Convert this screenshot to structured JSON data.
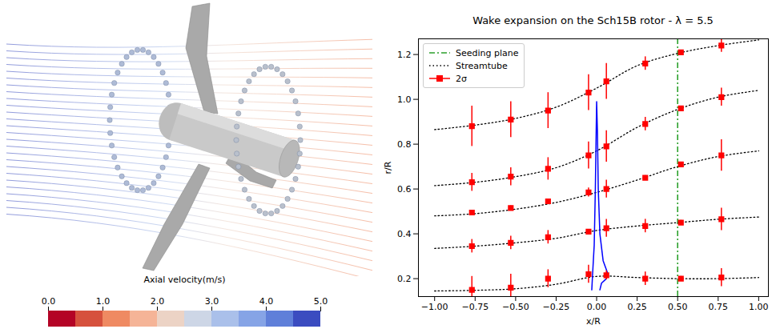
{
  "render": {
    "colorbar": {
      "label": "Axial velocity(m/s)",
      "range": [
        0,
        5
      ],
      "ticks": [
        {
          "value": 0,
          "label": "0.0"
        },
        {
          "value": 1,
          "label": "1.0"
        },
        {
          "value": 2,
          "label": "2.0"
        },
        {
          "value": 3,
          "label": "3.0"
        },
        {
          "value": 4,
          "label": "4.0"
        },
        {
          "value": 5,
          "label": "5.0"
        }
      ],
      "colors": [
        "#b40426",
        "#d6513d",
        "#ef8a62",
        "#f5b497",
        "#ecd3c5",
        "#cdd6e6",
        "#aac0ea",
        "#86a4e6",
        "#5f7fd9",
        "#3b4cc0"
      ]
    }
  },
  "chart_data": {
    "type": "line",
    "title": "Wake expansion on the Sch15B rotor - λ = 5.5",
    "x_label": "x/R",
    "y_label": "r/R",
    "xlim": [
      -1.1,
      1.06
    ],
    "ylim": [
      0.12,
      1.27
    ],
    "xticks": [
      {
        "value": -1,
        "label": "−1.00"
      },
      {
        "value": -0.75,
        "label": "−0.75"
      },
      {
        "value": -0.5,
        "label": "−0.50"
      },
      {
        "value": -0.25,
        "label": "−0.25"
      },
      {
        "value": 0,
        "label": "0.00"
      },
      {
        "value": 0.25,
        "label": "0.25"
      },
      {
        "value": 0.5,
        "label": "0.50"
      },
      {
        "value": 0.75,
        "label": "0.75"
      },
      {
        "value": 1,
        "label": "1.00"
      }
    ],
    "yticks": [
      0.2,
      0.4,
      0.6,
      0.8,
      {
        "value": 1,
        "label": "1.0"
      },
      1.2
    ],
    "legend": "upper left",
    "grid": false,
    "series": [
      {
        "name": "Seeding plane",
        "type": "vline",
        "color": "#2ca02c",
        "line_style": "dashdot",
        "x": 0.5
      },
      {
        "name": "Streamtube",
        "type": "line",
        "color": "#000000",
        "line_style": "dotted",
        "lines": [
          {
            "x": [
              -1,
              -0.75,
              -0.5,
              -0.25,
              0,
              0.25,
              0.5,
              0.75,
              1
            ],
            "y": [
              0.865,
              0.885,
              0.915,
              0.965,
              1.05,
              1.15,
              1.205,
              1.24,
              1.265
            ]
          },
          {
            "x": [
              -1,
              -0.75,
              -0.5,
              -0.25,
              0,
              0.25,
              0.5,
              0.75,
              1
            ],
            "y": [
              0.615,
              0.63,
              0.655,
              0.695,
              0.77,
              0.875,
              0.955,
              1.01,
              1.04
            ]
          },
          {
            "x": [
              -1,
              -0.75,
              -0.5,
              -0.25,
              0,
              0.25,
              0.5,
              0.75,
              1
            ],
            "y": [
              0.48,
              0.49,
              0.51,
              0.54,
              0.585,
              0.64,
              0.7,
              0.745,
              0.77
            ]
          },
          {
            "x": [
              -1,
              -0.75,
              -0.5,
              -0.25,
              0,
              0.25,
              0.5,
              0.75,
              1
            ],
            "y": [
              0.335,
              0.345,
              0.36,
              0.38,
              0.415,
              0.435,
              0.45,
              0.465,
              0.475
            ]
          },
          {
            "x": [
              -1,
              -0.75,
              -0.5,
              -0.25,
              0,
              0.25,
              0.5,
              0.75,
              1
            ],
            "y": [
              0.145,
              0.148,
              0.155,
              0.175,
              0.21,
              0.205,
              0.2,
              0.2,
              0.205
            ]
          }
        ]
      },
      {
        "name": "2σ",
        "type": "errorbar",
        "color": "#ff0000",
        "marker": "square",
        "points": [
          {
            "x": [
              -0.77,
              -0.53,
              -0.3,
              -0.05,
              0.06,
              0.3,
              0.52,
              0.77
            ],
            "y": [
              0.88,
              0.91,
              0.95,
              1.03,
              1.08,
              1.16,
              1.21,
              1.24
            ],
            "error": [
              0.09,
              0.08,
              0.08,
              0.08,
              0.08,
              0.03,
              0.01,
              0.03
            ]
          },
          {
            "x": [
              -0.77,
              -0.53,
              -0.3,
              -0.05,
              0.06,
              0.3,
              0.52,
              0.77
            ],
            "y": [
              0.63,
              0.655,
              0.69,
              0.75,
              0.79,
              0.89,
              0.96,
              1.01
            ],
            "error": [
              0.04,
              0.04,
              0.05,
              0.06,
              0.07,
              0.03,
              0.01,
              0.04
            ]
          },
          {
            "x": [
              -0.77,
              -0.53,
              -0.3,
              -0.05,
              0.06,
              0.3,
              0.52,
              0.77
            ],
            "y": [
              0.495,
              0.515,
              0.545,
              0.585,
              0.6,
              0.65,
              0.71,
              0.75
            ],
            "error": [
              0.01,
              0.01,
              0.01,
              0.02,
              0.04,
              0.01,
              0.01,
              0.07
            ]
          },
          {
            "x": [
              -0.77,
              -0.53,
              -0.3,
              -0.05,
              0.06,
              0.3,
              0.52,
              0.77
            ],
            "y": [
              0.345,
              0.36,
              0.385,
              0.41,
              0.425,
              0.435,
              0.45,
              0.465
            ],
            "error": [
              0.03,
              0.03,
              0.03,
              0.01,
              0.04,
              0.03,
              0.01,
              0.05
            ]
          },
          {
            "x": [
              -0.77,
              -0.53,
              -0.3,
              -0.05,
              0.06,
              0.3,
              0.52,
              0.77
            ],
            "y": [
              0.15,
              0.16,
              0.2,
              0.22,
              0.215,
              0.2,
              0.2,
              0.205
            ],
            "error": [
              0.06,
              0.06,
              0.04,
              0.04,
              0.02,
              0.03,
              0.01,
              0.04
            ]
          }
        ]
      }
    ],
    "profile": {
      "color": "#0000ff",
      "x": [
        -0.03,
        -0.025,
        -0.015,
        -0.008,
        -0.003,
        0.0,
        0.005,
        0.01,
        0.02,
        0.04,
        0.07,
        0.06,
        0.03,
        0.02
      ],
      "y": [
        0.15,
        0.22,
        0.35,
        0.6,
        0.85,
        0.99,
        0.85,
        0.6,
        0.4,
        0.28,
        0.22,
        0.2,
        0.18,
        0.15
      ]
    }
  }
}
